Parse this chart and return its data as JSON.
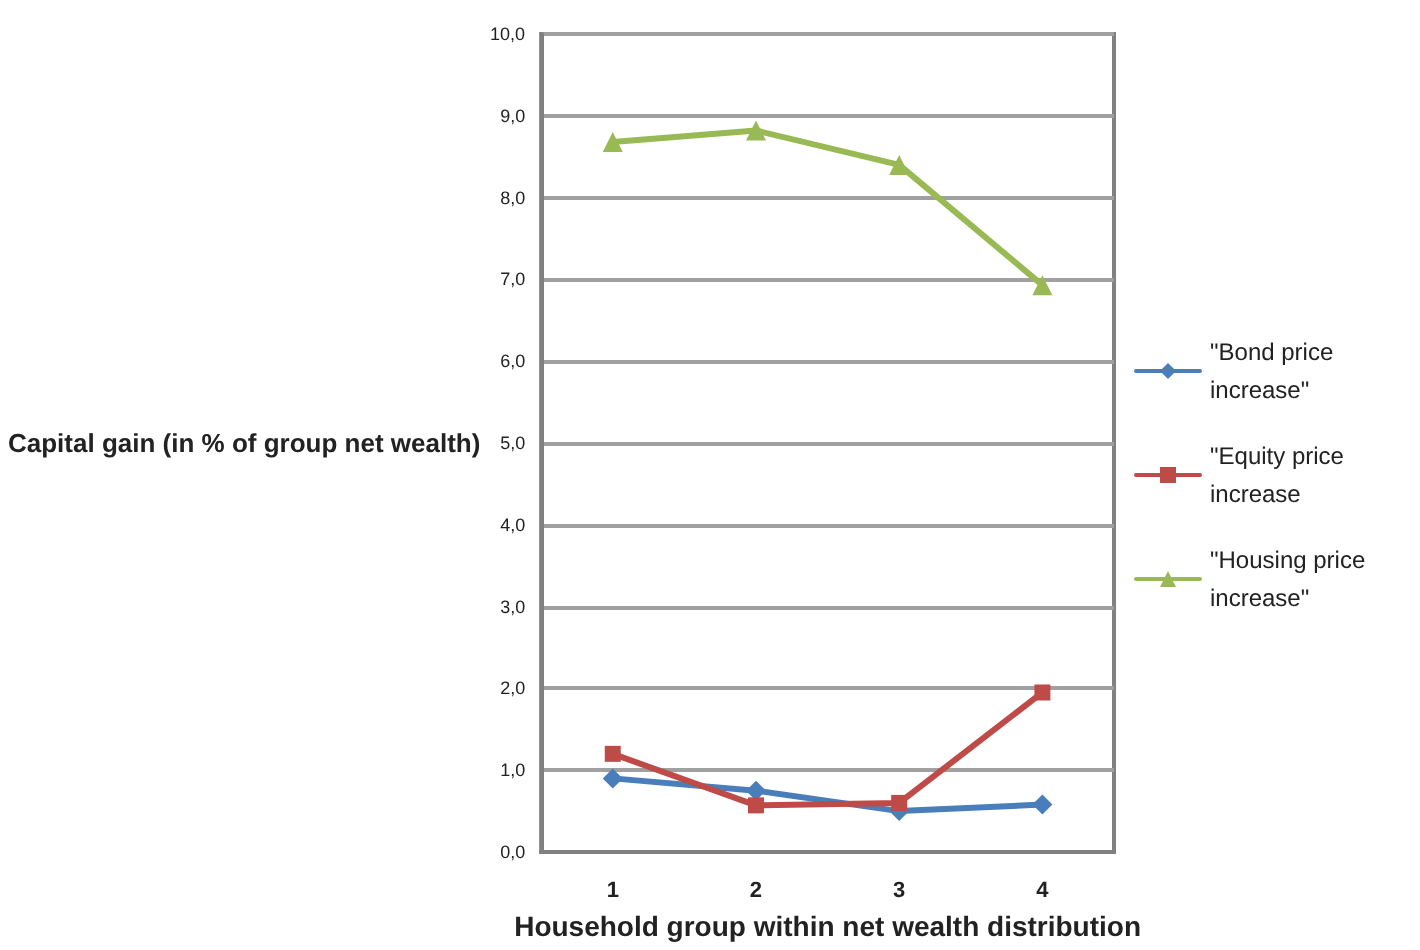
{
  "chart_data": {
    "type": "line",
    "xlabel": "Household group within net wealth distribution",
    "ylabel": "Capital gain (in % of group net wealth)",
    "categories": [
      "1",
      "2",
      "3",
      "4"
    ],
    "series": [
      {
        "name": "\"Bond price increase\"",
        "color": "#4a7ebb",
        "marker": "diamond",
        "values": [
          0.9,
          0.75,
          0.5,
          0.58
        ]
      },
      {
        "name": "\"Equity price increase",
        "color": "#be4b48",
        "marker": "square",
        "values": [
          1.2,
          0.57,
          0.6,
          1.95
        ]
      },
      {
        "name": "\"Housing price increase\"",
        "color": "#98b954",
        "marker": "triangle",
        "values": [
          8.68,
          8.82,
          8.4,
          6.93
        ]
      }
    ],
    "ylim": [
      0,
      10
    ],
    "yticks": [
      {
        "value": 0,
        "label": "0,0"
      },
      {
        "value": 1,
        "label": "1,0"
      },
      {
        "value": 2,
        "label": "2,0"
      },
      {
        "value": 3,
        "label": "3,0"
      },
      {
        "value": 4,
        "label": "4,0"
      },
      {
        "value": 5,
        "label": "5,0"
      },
      {
        "value": 6,
        "label": "6,0"
      },
      {
        "value": 7,
        "label": "7,0"
      },
      {
        "value": 8,
        "label": "8,0"
      },
      {
        "value": 9,
        "label": "9,0"
      },
      {
        "value": 10,
        "label": "10,0"
      }
    ],
    "grid": "y",
    "legend": "right",
    "line_style": "solid"
  }
}
